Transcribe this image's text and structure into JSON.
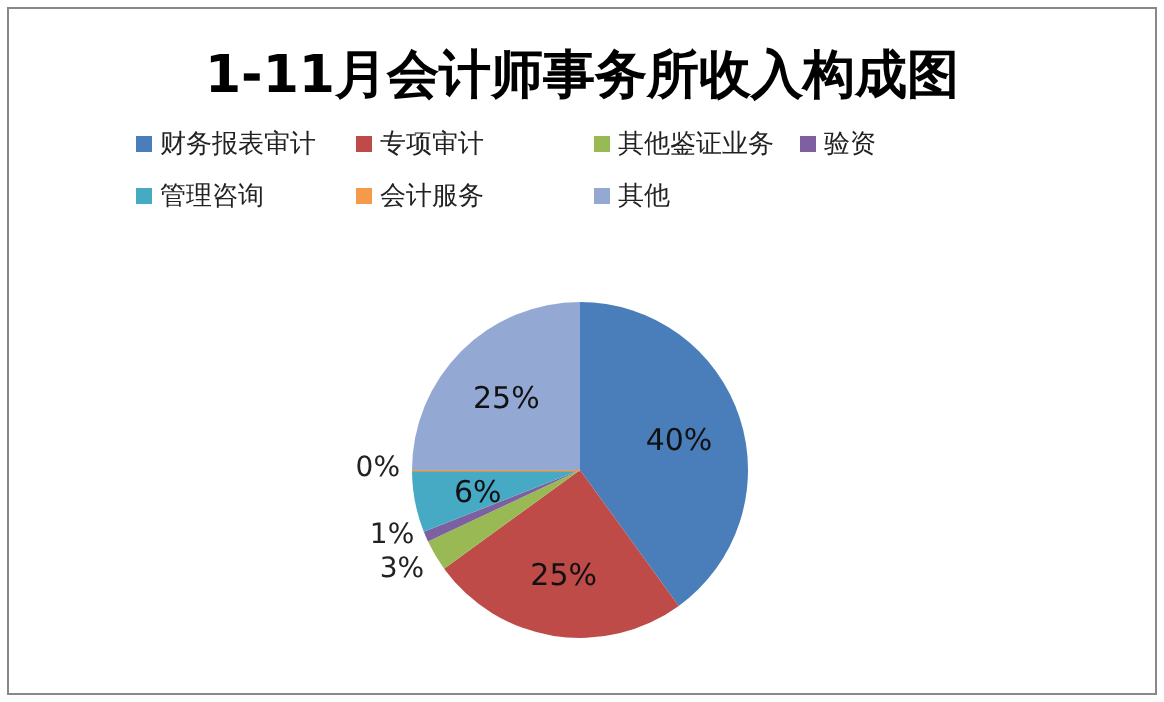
{
  "chart_data": {
    "type": "pie",
    "title": "1-11月会计师事务所收入构成图",
    "categories": [
      "财务报表审计",
      "专项审计",
      "其他鉴证业务",
      "验资",
      "管理咨询",
      "会计服务",
      "其他"
    ],
    "values": [
      40,
      25,
      3,
      1,
      6,
      0,
      25
    ],
    "colors": [
      "#4a7ebb",
      "#be4b48",
      "#98b954",
      "#7d60a0",
      "#46aac5",
      "#f59a4a",
      "#93a9d4"
    ],
    "value_labels": [
      "40%",
      "25%",
      "3%",
      "1%",
      "6%",
      "0%",
      "25%"
    ],
    "legend": "top"
  }
}
